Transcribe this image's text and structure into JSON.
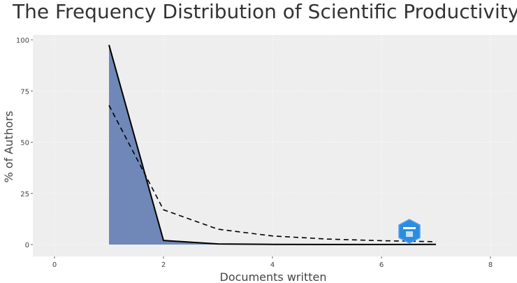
{
  "chart_data": {
    "type": "area",
    "title": "The Frequency Distribution of Scientific Productivity",
    "xlabel": "Documents written",
    "ylabel": "% of Authors",
    "xlim": [
      -0.4,
      8.4
    ],
    "ylim": [
      -5,
      102
    ],
    "xticks": [
      0,
      2,
      4,
      6,
      8
    ],
    "yticks": [
      0,
      25,
      50,
      75,
      100
    ],
    "grid": true,
    "series": [
      {
        "style": "solid-filled",
        "x": [
          1,
          2,
          3,
          4,
          5,
          6,
          7
        ],
        "y": [
          97.5,
          2.0,
          0.3,
          0.1,
          0.05,
          0.05,
          0.1
        ]
      },
      {
        "style": "dashed",
        "x": [
          1,
          2,
          3,
          4,
          5,
          6,
          7
        ],
        "y": [
          68,
          17,
          7.5,
          4.2,
          2.7,
          1.9,
          1.4
        ]
      }
    ],
    "colors": {
      "fill": "#6f88b8",
      "line": "#000000",
      "panel": "#eeeeee",
      "grid": "#ffffff"
    }
  }
}
